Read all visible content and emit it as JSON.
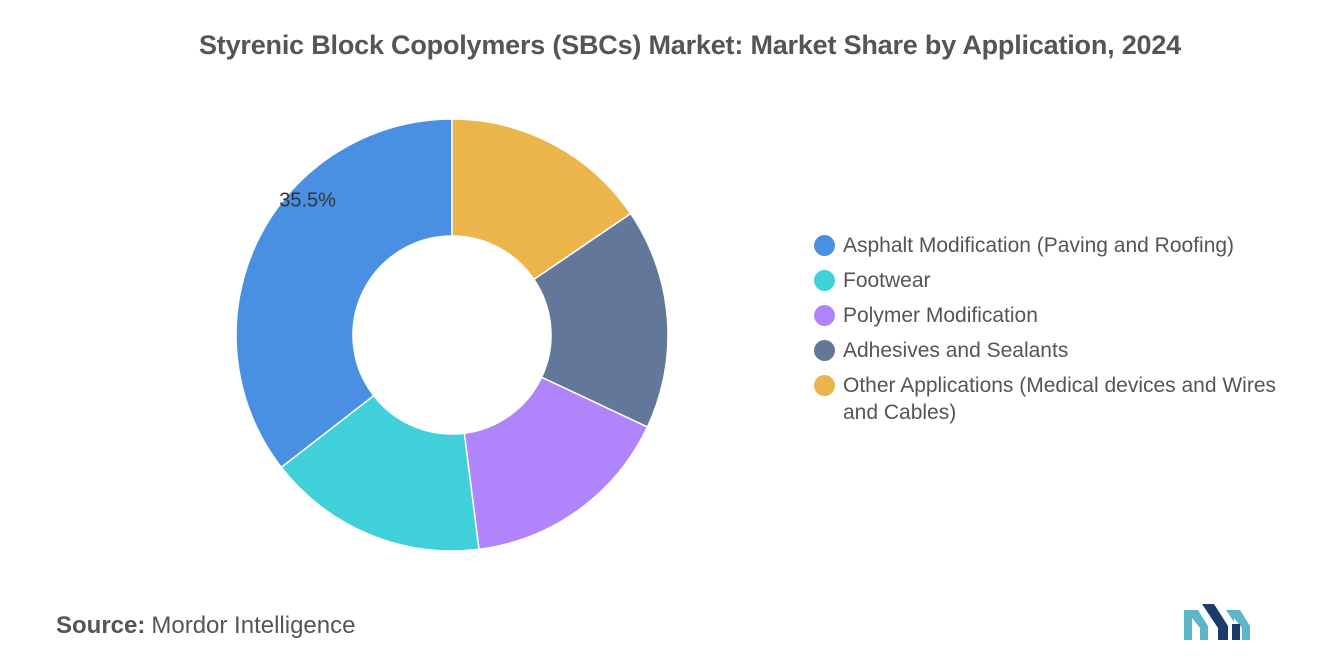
{
  "title": "Styrenic Block Copolymers (SBCs) Market: Market Share by Application, 2024",
  "source": {
    "label": "Source:",
    "value": "Mordor Intelligence"
  },
  "chart_data": {
    "type": "pie",
    "style": "donut",
    "title": "Styrenic Block Copolymers (SBCs) Market: Market Share by Application, 2024",
    "categories": [
      "Asphalt Modification (Paving and Roofing)",
      "Footwear",
      "Polymer Modification",
      "Adhesives and Sealants",
      "Other Applications (Medical devices and Wires and Cables)"
    ],
    "values": [
      35.5,
      16.5,
      16.0,
      16.5,
      15.5
    ],
    "colors": [
      "#4a90e2",
      "#40d0da",
      "#b084fb",
      "#627799",
      "#ebb54b"
    ],
    "data_labels": [
      "35.5%",
      "",
      "",
      "",
      ""
    ],
    "legend_position": "right"
  },
  "legend": [
    {
      "label": "Asphalt Modification (Paving and Roofing)",
      "color": "#4a90e2"
    },
    {
      "label": "Footwear",
      "color": "#40d0da"
    },
    {
      "label": "Polymer Modification",
      "color": "#b084fb"
    },
    {
      "label": "Adhesives and Sealants",
      "color": "#627799"
    },
    {
      "label": "Other Applications (Medical devices and Wires and Cables)",
      "color": "#ebb54b"
    }
  ]
}
